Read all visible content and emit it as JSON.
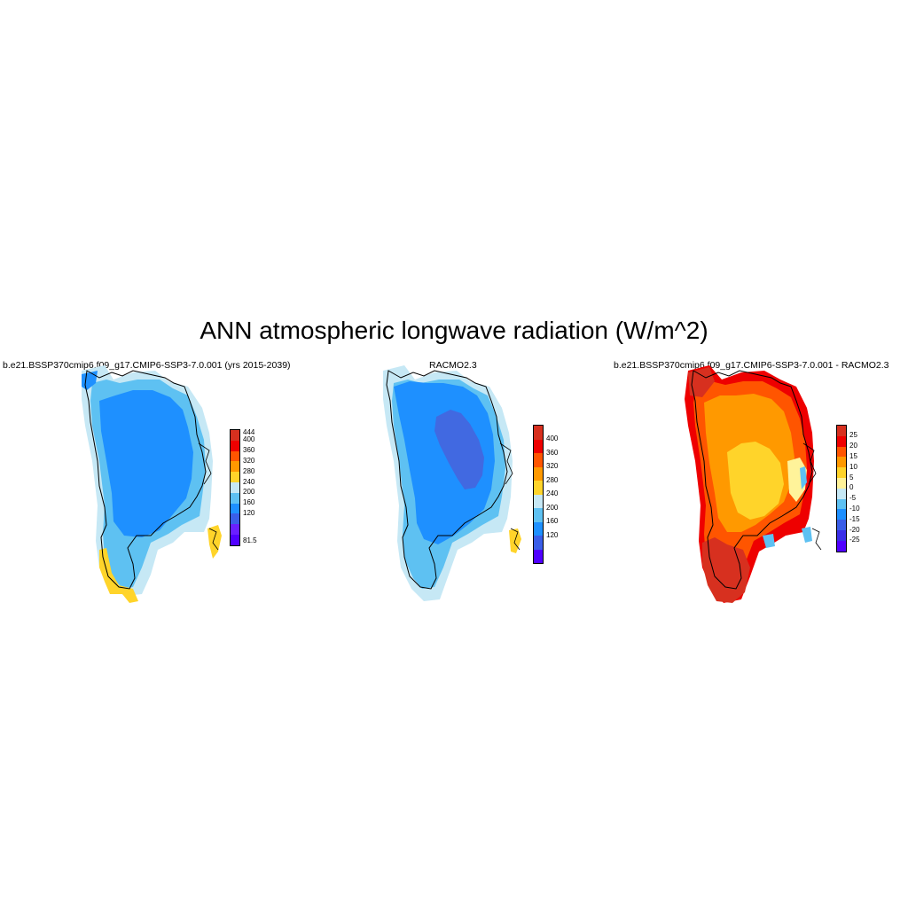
{
  "figure": {
    "title": "ANN atmospheric longwave radiation (W/m^2)"
  },
  "panels": [
    {
      "title": "b.e21.BSSP370cmip6.f09_g17.CMIP6-SSP3-7.0.001 (yrs 2015-2039)",
      "colorbar": {
        "labels": [
          "444",
          "400",
          "360",
          "320",
          "280",
          "240",
          "200",
          "160",
          "120",
          "81.5"
        ],
        "colors": [
          "#d7301f",
          "#ee0000",
          "#ff5500",
          "#ff9900",
          "#ffd42a",
          "#c6e8f5",
          "#5ec1f2",
          "#1e90ff",
          "#3a5ee8",
          "#6a1fff",
          "#5000ff"
        ]
      },
      "field": {
        "interior": "#1e90ff",
        "margin": "#5ec1f2",
        "edge": "#c6e8f5",
        "south": "#ffd42a"
      }
    },
    {
      "title": "RACMO2.3",
      "colorbar": {
        "labels": [
          "400",
          "360",
          "320",
          "280",
          "240",
          "200",
          "160",
          "120"
        ],
        "colors": [
          "#d7301f",
          "#ee0000",
          "#ff5500",
          "#ff9900",
          "#ffd42a",
          "#c6e8f5",
          "#5ec1f2",
          "#1e90ff",
          "#3a5ee8",
          "#5000ff"
        ]
      },
      "field": {
        "core": "#4169e1",
        "interior": "#1e90ff",
        "margin": "#5ec1f2",
        "edge": "#c6e8f5",
        "south": "#ffd42a"
      }
    },
    {
      "title": "b.e21.BSSP370cmip6.f09_g17.CMIP6-SSP3-7.0.001 - RACMO2.3",
      "colorbar": {
        "labels": [
          "25",
          "20",
          "15",
          "10",
          "5",
          "0",
          "-5",
          "-10",
          "-15",
          "-20",
          "-25"
        ],
        "colors": [
          "#d7301f",
          "#ee0000",
          "#ff5500",
          "#ff9900",
          "#ffd42a",
          "#fff39a",
          "#c6e8f5",
          "#5ec1f2",
          "#1e90ff",
          "#3a5ee8",
          "#3a2ee8",
          "#5000ff"
        ]
      },
      "field": {
        "interior": "#ffd42a",
        "inner": "#ff9900",
        "margin": "#ff5500",
        "edge": "#ee0000",
        "south": "#d7301f",
        "east_pale": "#fff39a",
        "east_blue": "#5ec1f2"
      }
    }
  ]
}
